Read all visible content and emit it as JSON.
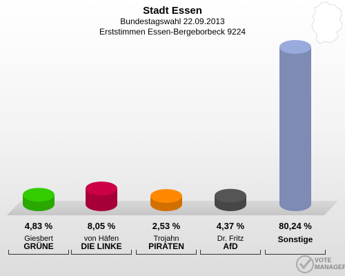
{
  "header": {
    "title": "Stadt Essen",
    "subtitle": "Bundestagswahl 22.09.2013",
    "subtitle2": "Erststimmen Essen-Bergeborbeck 9224"
  },
  "watermark": {
    "line1": "VOTE",
    "line2": "MANAGER"
  },
  "colors": {
    "gruene": "#33cc00",
    "linke": "#cc0044",
    "piraten": "#ff8800",
    "afd": "#555555",
    "sonstige": "#99aadd"
  },
  "chart_data": {
    "type": "bar",
    "style": "3d-cylinder",
    "categories": [
      "GRÜNE",
      "DIE LINKE",
      "PIRATEN",
      "AfD",
      "Sonstige"
    ],
    "candidates": [
      "Giesbert",
      "von Häfen",
      "Trojahn",
      "Dr. Fritz",
      ""
    ],
    "values": [
      4.83,
      8.05,
      2.53,
      4.37,
      80.24
    ],
    "value_labels": [
      "4,83 %",
      "8,05 %",
      "2,53 %",
      "4,37 %",
      "80,24 %"
    ],
    "colors": [
      "#33cc00",
      "#cc0044",
      "#ff8800",
      "#555555",
      "#99aadd"
    ],
    "ylim": [
      0,
      85
    ],
    "grid": false,
    "legend": "none"
  }
}
